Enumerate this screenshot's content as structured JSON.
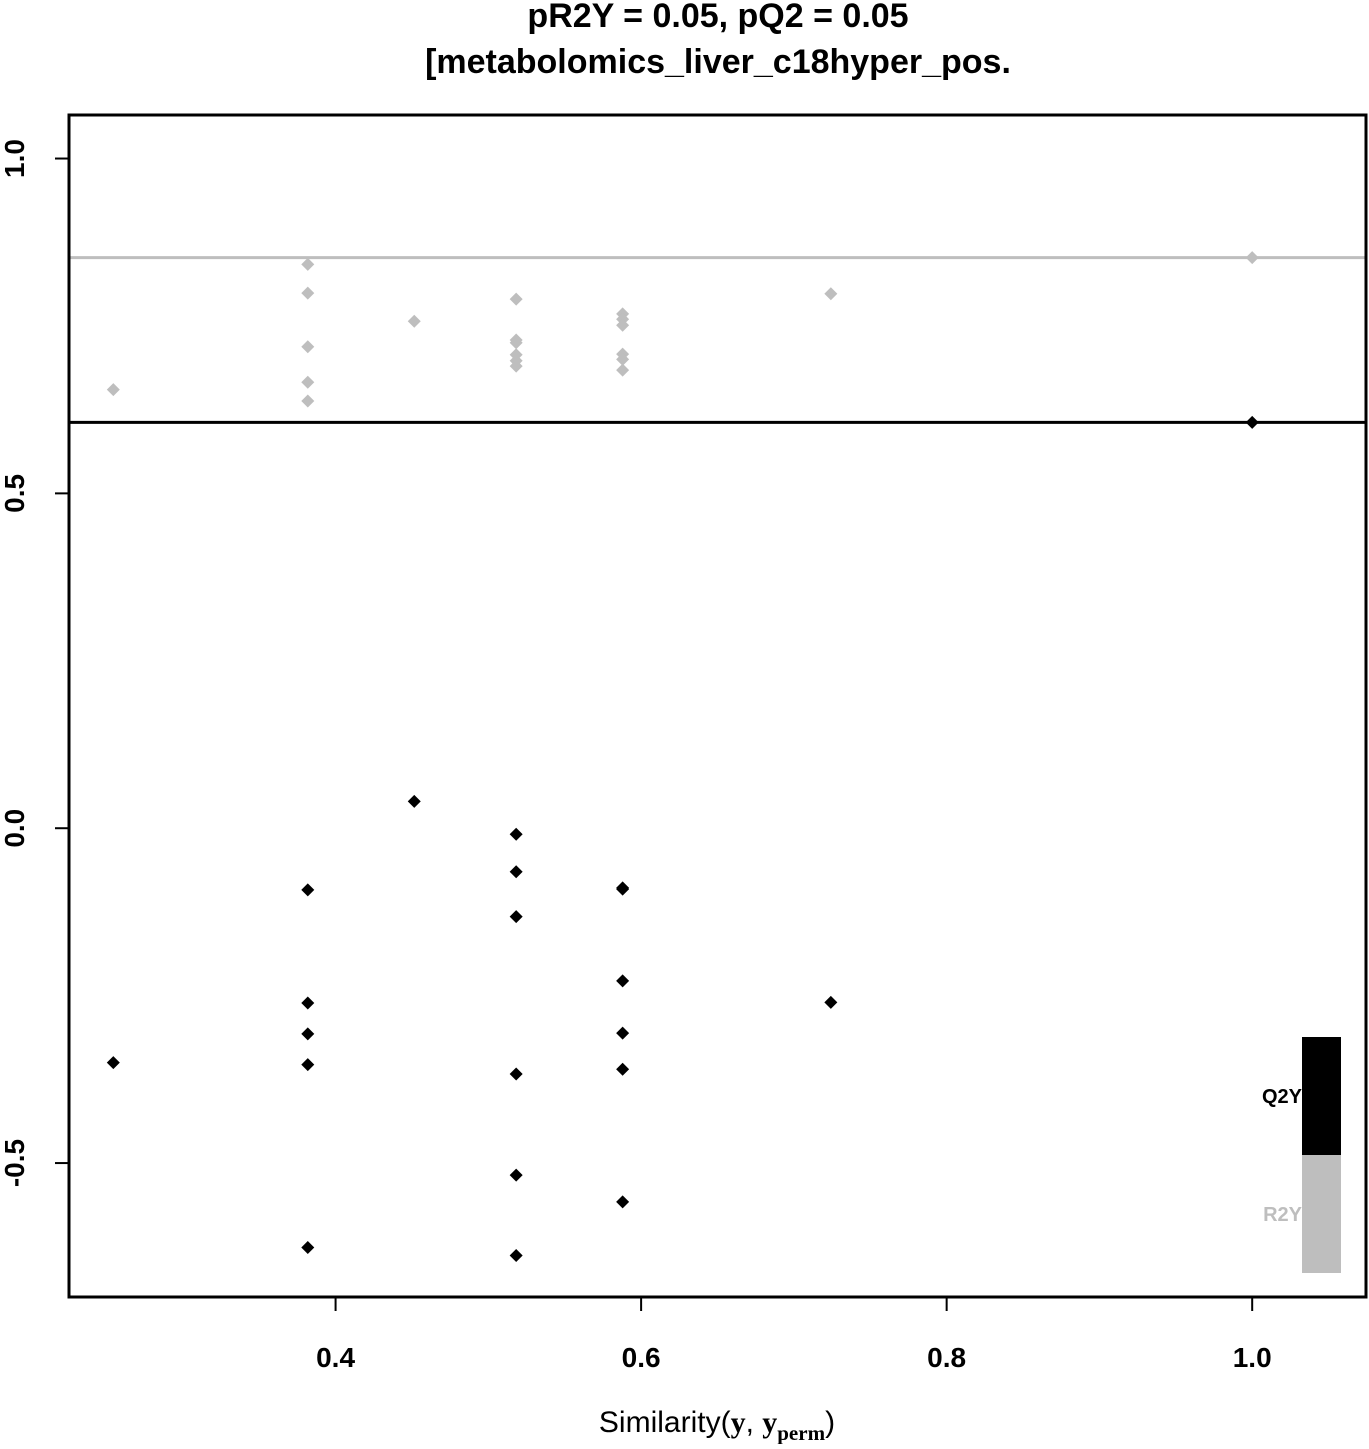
{
  "chart_data": {
    "type": "scatter",
    "title_lines": [
      "pR2Y = 0.05, pQ2 = 0.05",
      "[metabolomics_liver_c18hyper_pos."
    ],
    "xlabel": {
      "prefix": "Similarity(",
      "sym1": "y",
      "comma": ", ",
      "sym2": "y",
      "sub": "perm",
      "suffix": ")"
    },
    "xlim": [
      0.2255,
      1.0745
    ],
    "ylim": [
      -0.7,
      1.065
    ],
    "x_ticks": [
      {
        "value": 0.4,
        "label": "0.4"
      },
      {
        "value": 0.6,
        "label": "0.6"
      },
      {
        "value": 0.8,
        "label": "0.8"
      },
      {
        "value": 1.0,
        "label": "1.0"
      }
    ],
    "y_ticks": [
      {
        "value": -0.5,
        "label": "-0.5"
      },
      {
        "value": 0.0,
        "label": "0.0"
      },
      {
        "value": 0.5,
        "label": "0.5"
      },
      {
        "value": 1.0,
        "label": "1.0"
      }
    ],
    "hlines": [
      {
        "series": "R2Y",
        "y": 0.852,
        "color": "#bebebe"
      },
      {
        "series": "Q2Y",
        "y": 0.606,
        "color": "#000000"
      }
    ],
    "legend_position": "bottom-right",
    "series": [
      {
        "name": "R2Y",
        "color": "#bebebe",
        "points": [
          [
            0.2545,
            0.655
          ],
          [
            0.3818,
            0.842
          ],
          [
            0.3818,
            0.799
          ],
          [
            0.3818,
            0.719
          ],
          [
            0.3818,
            0.666
          ],
          [
            0.3818,
            0.638
          ],
          [
            0.4515,
            0.757
          ],
          [
            0.5182,
            0.79
          ],
          [
            0.5182,
            0.729
          ],
          [
            0.5182,
            0.725
          ],
          [
            0.5182,
            0.707
          ],
          [
            0.5182,
            0.698
          ],
          [
            0.5182,
            0.69
          ],
          [
            0.5879,
            0.768
          ],
          [
            0.5879,
            0.76
          ],
          [
            0.5879,
            0.751
          ],
          [
            0.5879,
            0.708
          ],
          [
            0.5879,
            0.7
          ],
          [
            0.5879,
            0.684
          ],
          [
            0.7242,
            0.798
          ],
          [
            1.0,
            0.852
          ]
        ]
      },
      {
        "name": "Q2Y",
        "color": "#000000",
        "points": [
          [
            0.2545,
            -0.35
          ],
          [
            0.3818,
            -0.092
          ],
          [
            0.3818,
            -0.261
          ],
          [
            0.3818,
            -0.307
          ],
          [
            0.3818,
            -0.353
          ],
          [
            0.3818,
            -0.626
          ],
          [
            0.4515,
            0.04
          ],
          [
            0.5182,
            -0.009
          ],
          [
            0.5182,
            -0.065
          ],
          [
            0.5182,
            -0.132
          ],
          [
            0.5182,
            -0.367
          ],
          [
            0.5182,
            -0.518
          ],
          [
            0.5182,
            -0.638
          ],
          [
            0.5879,
            -0.089
          ],
          [
            0.5879,
            -0.091
          ],
          [
            0.5879,
            -0.228
          ],
          [
            0.5879,
            -0.306
          ],
          [
            0.5879,
            -0.36
          ],
          [
            0.5879,
            -0.558
          ],
          [
            0.7242,
            -0.26
          ],
          [
            1.0,
            0.606
          ]
        ]
      }
    ],
    "legend": [
      {
        "label": "Q2Y",
        "color": "#000000"
      },
      {
        "label": "R2Y",
        "color": "#bebebe"
      }
    ]
  }
}
